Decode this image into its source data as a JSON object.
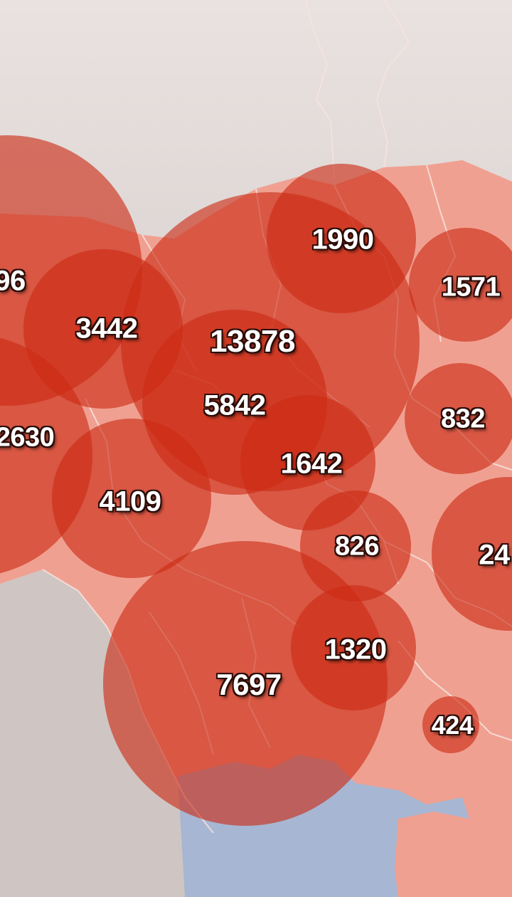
{
  "map": {
    "colors": {
      "background_top": "#e5dfdd",
      "background_bottom": "#c6bcb9",
      "land_highlight": "#f1a195",
      "bubble_fill": "#cc2a14",
      "sea": "#a9b7d3",
      "border": "#f6e5e2",
      "label_outline": "#2a0c08"
    },
    "bubbles": [
      {
        "id": "b-3442",
        "label": "3442",
        "value": 3442
      },
      {
        "id": "b-13878",
        "label": "13878",
        "value": 13878
      },
      {
        "id": "b-5842",
        "label": "5842",
        "value": 5842
      },
      {
        "id": "b-1990",
        "label": "1990",
        "value": 1990
      },
      {
        "id": "b-1571",
        "label": "1571",
        "value": 1571
      },
      {
        "id": "b-832",
        "label": "832",
        "value": 832
      },
      {
        "id": "b-1642",
        "label": "1642",
        "value": 1642
      },
      {
        "id": "b-4109",
        "label": "4109",
        "value": 4109
      },
      {
        "id": "b-826",
        "label": "826",
        "value": 826
      },
      {
        "id": "b-1320",
        "label": "1320",
        "value": 1320
      },
      {
        "id": "b-7697",
        "label": "7697",
        "value": 7697
      },
      {
        "id": "b-424",
        "label": "424",
        "value": 424
      },
      {
        "id": "b-x96",
        "label": "96",
        "value": null
      },
      {
        "id": "b-x2630",
        "label": "2630",
        "value": null
      },
      {
        "id": "b-x24",
        "label": "24",
        "value": null
      }
    ]
  }
}
